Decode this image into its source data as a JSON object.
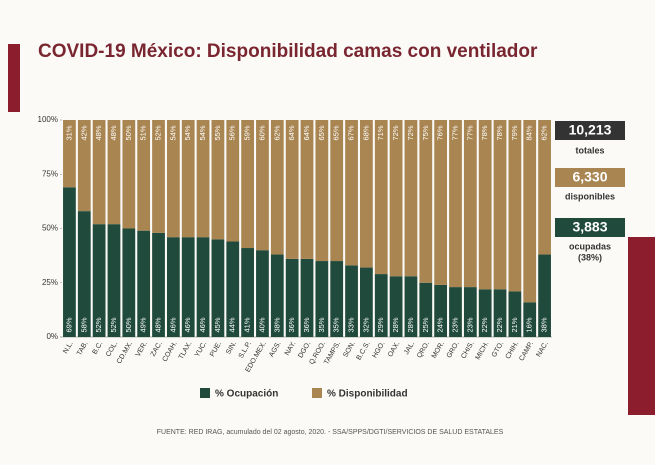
{
  "chart_data": {
    "type": "stacked-bar",
    "title": "COVID-19 México: Disponibilidad camas con ventilador",
    "categories": [
      "N.L.",
      "TAB.",
      "B.C.",
      "COL.",
      "CD.MX.",
      "VER.",
      "ZAC.",
      "COAH.",
      "TLAX.",
      "YUC.",
      "PUE.",
      "SIN.",
      "S.L.P.",
      "EDO.MEX.",
      "AGS.",
      "NAY.",
      "DGO.",
      "Q.ROO.",
      "TAMPS.",
      "SON.",
      "B.C.S.",
      "HGO.",
      "OAX.",
      "JAL.",
      "QRO.",
      "MOR.",
      "GRO.",
      "CHIS.",
      "MICH.",
      "GTO.",
      "CHIH.",
      "CAMP.",
      "NAC."
    ],
    "series": [
      {
        "name": "% Ocupación",
        "color": "#1f4a3c",
        "values": [
          69,
          58,
          52,
          52,
          50,
          49,
          48,
          46,
          46,
          46,
          45,
          44,
          41,
          40,
          38,
          36,
          36,
          35,
          35,
          33,
          32,
          29,
          28,
          28,
          25,
          24,
          23,
          23,
          22,
          22,
          21,
          16,
          38
        ],
        "value_labels": [
          "69%",
          "58%",
          "52%",
          "52%",
          "50%",
          "49%",
          "48%",
          "46%",
          "46%",
          "46%",
          "45%",
          "44%",
          "41%",
          "40%",
          "38%",
          "36%",
          "36%",
          "35%",
          "35%",
          "33%",
          "32%",
          "29%",
          "28%",
          "28%",
          "25%",
          "24%",
          "23%",
          "23%",
          "22%",
          "22%",
          "21%",
          "16%",
          "38%"
        ]
      },
      {
        "name": "% Disponibilidad",
        "color": "#a98552",
        "values": [
          31,
          42,
          48,
          48,
          50,
          51,
          52,
          54,
          54,
          54,
          55,
          56,
          59,
          60,
          62,
          64,
          64,
          65,
          65,
          67,
          68,
          71,
          72,
          72,
          75,
          76,
          77,
          77,
          78,
          78,
          79,
          84,
          62
        ],
        "value_labels": [
          "31%",
          "42%",
          "48%",
          "48%",
          "50%",
          "51%",
          "52%",
          "54%",
          "54%",
          "54%",
          "55%",
          "56%",
          "59%",
          "60%",
          "62%",
          "64%",
          "64%",
          "65%",
          "65%",
          "67%",
          "68%",
          "71%",
          "72%",
          "72%",
          "75%",
          "76%",
          "77%",
          "77%",
          "78%",
          "78%",
          "79%",
          "84%",
          "62%"
        ]
      }
    ],
    "ylim": [
      0,
      100
    ],
    "yticks": [
      {
        "value": 0,
        "label": "0%"
      },
      {
        "value": 25,
        "label": "25%"
      },
      {
        "value": 50,
        "label": "50%"
      },
      {
        "value": 75,
        "label": "75%"
      },
      {
        "value": 100,
        "label": "100%"
      }
    ],
    "grid": false,
    "legend": "bottom",
    "source": "FUENTE: RED IRAG, acumulado del 02 agosto, 2020. -  SSA/SPPS/DGTI/SERVICIOS DE SALUD ESTATALES"
  },
  "stats": {
    "total": {
      "value": "10,213",
      "label": "totales"
    },
    "available": {
      "value": "6,330",
      "label": "disponibles"
    },
    "occupied": {
      "value": "3,883",
      "label": "ocupadas",
      "note": "(38%)"
    }
  }
}
